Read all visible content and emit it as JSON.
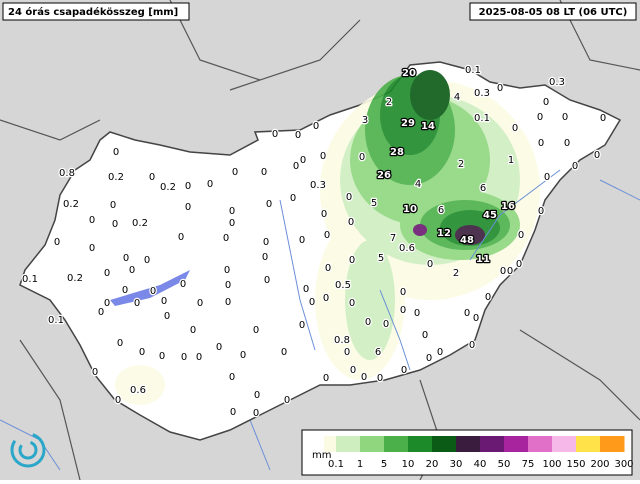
{
  "header": {
    "title": "24 órás csapadékösszeg [mm]",
    "timestamp": "2025-08-05 08 LT (06 UTC)"
  },
  "legend": {
    "unit": "mm",
    "ticks": [
      0.1,
      1,
      5,
      10,
      20,
      30,
      40,
      50,
      75,
      100,
      150,
      200,
      300
    ],
    "colors": [
      "#fbfbe4",
      "#cfeec0",
      "#8fd67f",
      "#4cb04a",
      "#1d8a2a",
      "#0b5a16",
      "#3a1d3e",
      "#6a1a72",
      "#a8239e",
      "#e070c8",
      "#f6b8e8",
      "#ffe24a",
      "#ff9a1a",
      "#f0301a"
    ]
  },
  "stations": [
    0.8,
    0.2,
    0.2,
    0.2,
    0.2,
    0.2,
    0.1,
    0.1,
    0.6,
    0.3,
    0.5,
    0.8,
    6,
    0.6,
    5,
    7,
    5,
    10,
    12,
    48,
    45,
    16,
    6,
    6,
    4,
    2,
    1,
    26,
    28,
    29,
    14,
    3,
    2,
    20,
    4,
    0.1,
    0.3,
    0.1,
    0.3,
    2,
    11,
    0,
    0,
    0,
    0,
    0,
    0,
    0,
    0,
    0,
    0,
    0,
    0,
    0,
    0,
    0,
    0,
    0,
    0,
    0,
    0,
    0,
    0,
    0,
    0,
    0,
    0,
    0,
    0,
    0,
    0,
    0,
    0,
    0,
    0,
    0,
    0,
    0,
    0,
    0,
    0,
    0,
    0,
    0,
    0,
    0,
    0,
    0,
    0,
    0,
    0,
    0,
    0,
    0,
    0,
    0,
    0,
    0,
    0,
    0,
    0,
    0,
    0,
    0,
    0,
    0,
    0,
    0,
    0,
    0,
    0,
    0,
    0,
    0,
    0,
    0,
    0,
    0,
    0,
    0,
    0,
    0,
    0,
    0,
    0,
    0,
    0,
    0,
    0,
    0,
    0,
    0,
    0,
    0,
    0,
    0,
    0,
    0,
    0,
    0,
    0,
    0,
    0,
    0,
    0,
    0,
    0,
    0,
    0
  ]
}
